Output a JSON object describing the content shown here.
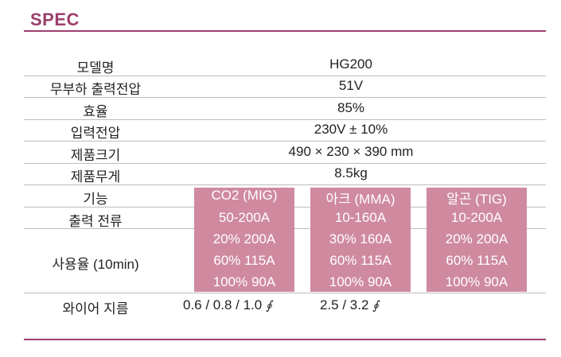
{
  "header": {
    "title": "SPEC"
  },
  "rows": [
    {
      "label": "모델명",
      "value": "HG200"
    },
    {
      "label": "무부하 출력전압",
      "value": "51V"
    },
    {
      "label": "효율",
      "value": "85%"
    },
    {
      "label": "입력전압",
      "value": "230V ± 10%"
    },
    {
      "label": "제품크기",
      "value": "490 × 230 × 390 mm"
    },
    {
      "label": "제품무게",
      "value": "8.5kg"
    }
  ],
  "function_label": "기능",
  "current_label": "출력 전류",
  "duty_label": "사용율 (10min)",
  "wire_label": "와이어 지름",
  "modes": [
    {
      "name": "CO2 (MIG)",
      "current": "50-200A",
      "duty": [
        "20% 200A",
        "60% 115A",
        "100% 90A"
      ]
    },
    {
      "name": "아크 (MMA)",
      "current": "10-160A",
      "duty": [
        "30% 160A",
        "60% 115A",
        "100% 90A"
      ]
    },
    {
      "name": "알곤 (TIG)",
      "current": "10-200A",
      "duty": [
        "20% 200A",
        "60% 115A",
        "100% 90A"
      ]
    }
  ],
  "wire": [
    {
      "value": "0.6 / 0.8 / 1.0",
      "symbol": "∮"
    },
    {
      "value": "2.5 / 3.2",
      "symbol": "∮"
    }
  ],
  "colors": {
    "accent": "#9c3f6b",
    "mode_bg": "#cf8aa0"
  }
}
